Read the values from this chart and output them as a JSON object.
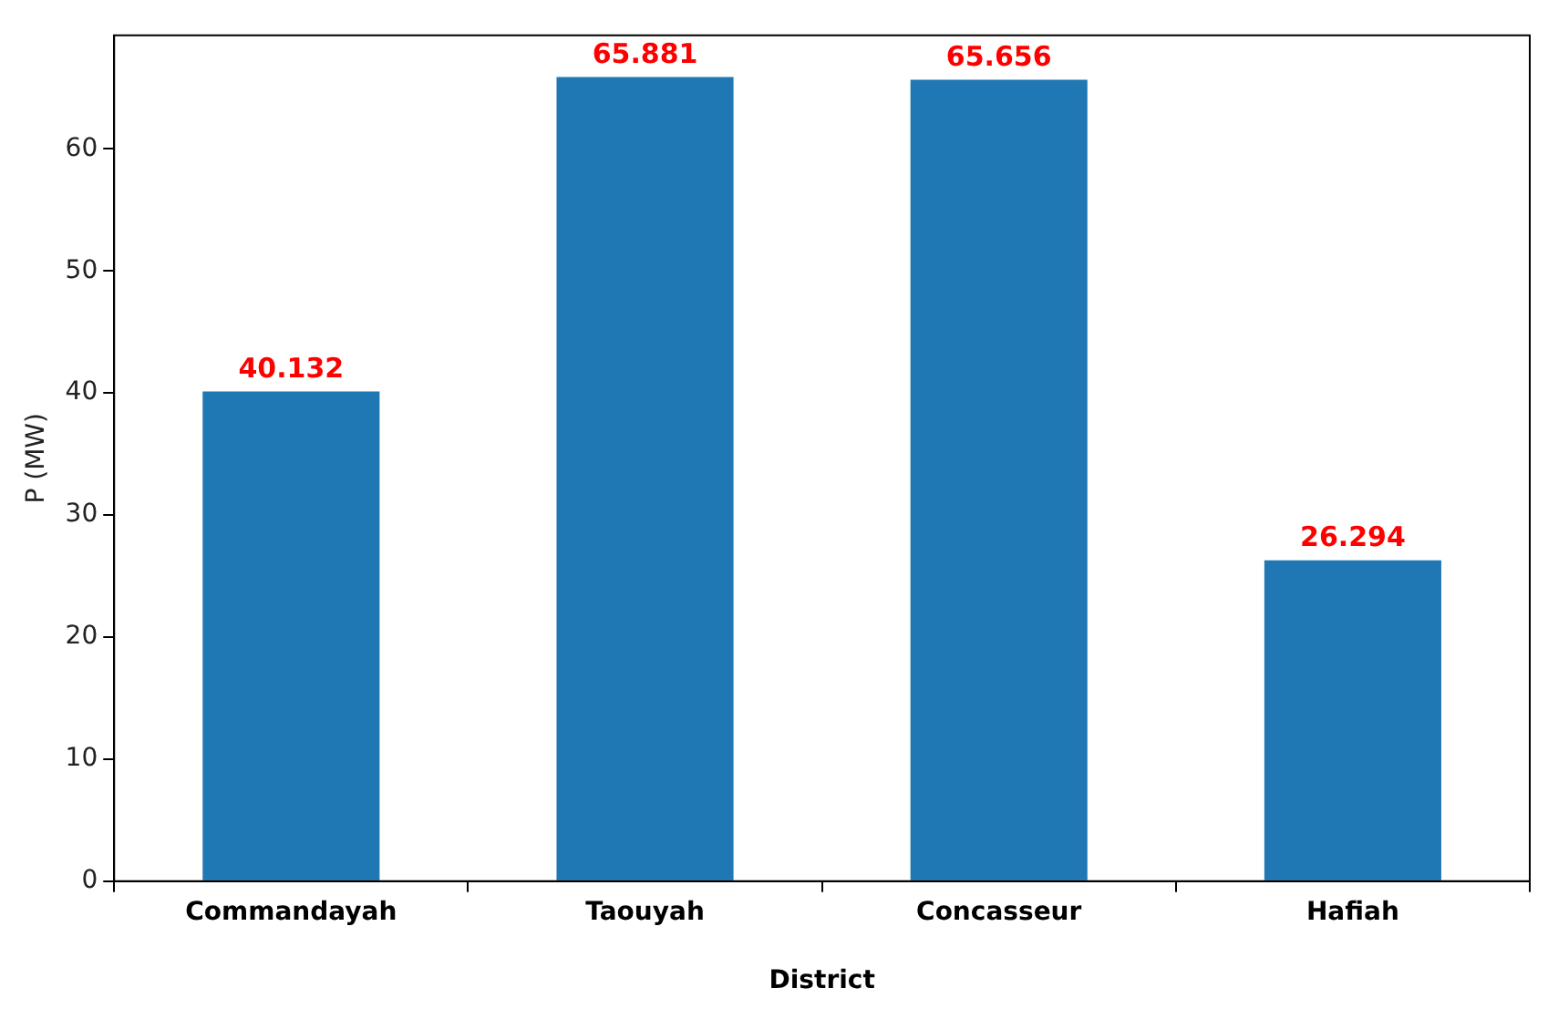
{
  "chart_data": {
    "type": "bar",
    "xlabel": "District",
    "ylabel": "P (MW)",
    "categories": [
      "Commandayah",
      "Taouyah",
      "Concasseur",
      "Hafiah"
    ],
    "values": [
      40.132,
      65.881,
      65.656,
      26.294
    ],
    "color": "#1f77b4",
    "ylim": [
      0,
      69.3
    ],
    "yticks": [
      0,
      10,
      20,
      30,
      40,
      50,
      60
    ],
    "data_labels": true
  }
}
